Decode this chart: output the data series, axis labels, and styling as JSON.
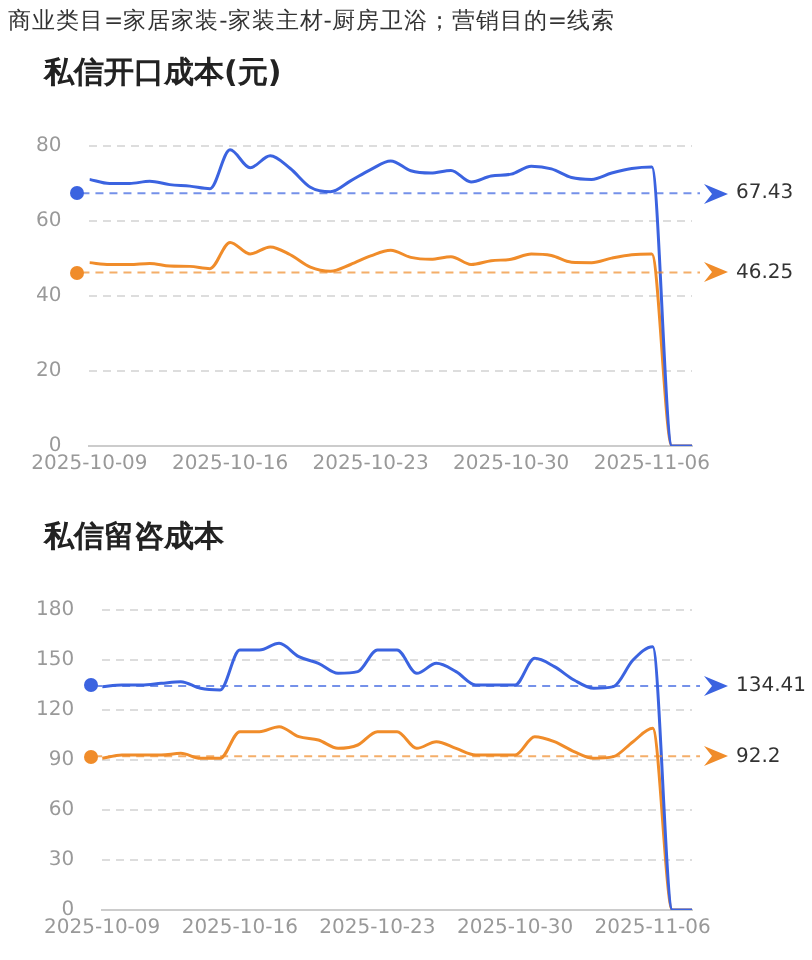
{
  "chart_data": [
    {
      "type": "line",
      "title": "私信开口成本(元)",
      "annotations": [
        "商业类目=家居家装-家装主材-厨房卫浴；营销目的=线索"
      ],
      "x": [
        "2025-10-09",
        "2025-10-10",
        "2025-10-11",
        "2025-10-12",
        "2025-10-13",
        "2025-10-14",
        "2025-10-15",
        "2025-10-16",
        "2025-10-17",
        "2025-10-18",
        "2025-10-19",
        "2025-10-20",
        "2025-10-21",
        "2025-10-22",
        "2025-10-23",
        "2025-10-24",
        "2025-10-25",
        "2025-10-26",
        "2025-10-27",
        "2025-10-28",
        "2025-10-29",
        "2025-10-30",
        "2025-10-31",
        "2025-11-01",
        "2025-11-02",
        "2025-11-03",
        "2025-11-04",
        "2025-11-05",
        "2025-11-06",
        "2025-11-07",
        "2025-11-08"
      ],
      "series": [
        {
          "color": "#3b63e0",
          "values": [
            71.1,
            70,
            70,
            70.6,
            69.7,
            69.3,
            68.6,
            79,
            74.2,
            77.4,
            74,
            69,
            67.8,
            70.7,
            73.7,
            76,
            73.4,
            72.8,
            73.5,
            70.4,
            72,
            72.5,
            74.6,
            73.9,
            71.6,
            71.1,
            72.8,
            74,
            74.4,
            0,
            0
          ]
        },
        {
          "color": "#f08c2a",
          "values": [
            48.9,
            48.4,
            48.4,
            48.7,
            48,
            47.9,
            47.3,
            54.3,
            51.2,
            53.1,
            51,
            47.7,
            46.6,
            48.4,
            50.7,
            52.2,
            50.3,
            49.8,
            50.5,
            48.4,
            49.4,
            49.8,
            51.2,
            50.8,
            49,
            48.9,
            50.1,
            51,
            51.2,
            0,
            0
          ]
        }
      ],
      "ref_lines": [
        {
          "axis": "y",
          "value": 67.43,
          "label": "67.43",
          "color": "#3b63e0",
          "line_style": "dashed"
        },
        {
          "axis": "y",
          "value": 46.25,
          "label": "46.25",
          "color": "#f08c2a",
          "line_style": "dashed"
        }
      ],
      "xlim": [
        "2025-10-09",
        "2025-11-08"
      ],
      "xticks": [
        "2025-10-09",
        "2025-10-16",
        "2025-10-23",
        "2025-10-30",
        "2025-11-06"
      ],
      "ylim": [
        0,
        80
      ],
      "yticks": [
        0,
        20,
        40,
        60,
        80
      ],
      "grid": "y",
      "legend": false
    },
    {
      "type": "line",
      "title": "私信留咨成本",
      "x": [
        "2025-10-09",
        "2025-10-10",
        "2025-10-11",
        "2025-10-12",
        "2025-10-13",
        "2025-10-14",
        "2025-10-15",
        "2025-10-16",
        "2025-10-17",
        "2025-10-18",
        "2025-10-19",
        "2025-10-20",
        "2025-10-21",
        "2025-10-22",
        "2025-10-23",
        "2025-10-24",
        "2025-10-25",
        "2025-10-26",
        "2025-10-27",
        "2025-10-28",
        "2025-10-29",
        "2025-10-30",
        "2025-10-31",
        "2025-11-01",
        "2025-11-02",
        "2025-11-03",
        "2025-11-04",
        "2025-11-05",
        "2025-11-06",
        "2025-11-07",
        "2025-11-08"
      ],
      "series": [
        {
          "color": "#3b63e0",
          "values": [
            134,
            135,
            135,
            136,
            137,
            133,
            132,
            156,
            156,
            160,
            152,
            148,
            142,
            143,
            156,
            156,
            142,
            148,
            143,
            135,
            135,
            135,
            151,
            146,
            138,
            133,
            134,
            150,
            158,
            0,
            0
          ]
        },
        {
          "color": "#f08c2a",
          "values": [
            91,
            93,
            93,
            93,
            94,
            91,
            91,
            107,
            107,
            110,
            104,
            102,
            97,
            99,
            107,
            107,
            97,
            101,
            97,
            93,
            93,
            93,
            104,
            101,
            95,
            91,
            92,
            101,
            109,
            0,
            0
          ]
        }
      ],
      "ref_lines": [
        {
          "axis": "y",
          "value": 134.41,
          "label": "134.41",
          "color": "#3b63e0",
          "line_style": "dashed"
        },
        {
          "axis": "y",
          "value": 92.2,
          "label": "92.2",
          "color": "#f08c2a",
          "line_style": "dashed"
        }
      ],
      "xlim": [
        "2025-10-09",
        "2025-11-08"
      ],
      "xticks": [
        "2025-10-09",
        "2025-10-16",
        "2025-10-23",
        "2025-10-30",
        "2025-11-06"
      ],
      "ylim": [
        0,
        180
      ],
      "yticks": [
        0,
        30,
        60,
        90,
        120,
        150,
        180
      ],
      "grid": "y",
      "legend": false
    }
  ]
}
